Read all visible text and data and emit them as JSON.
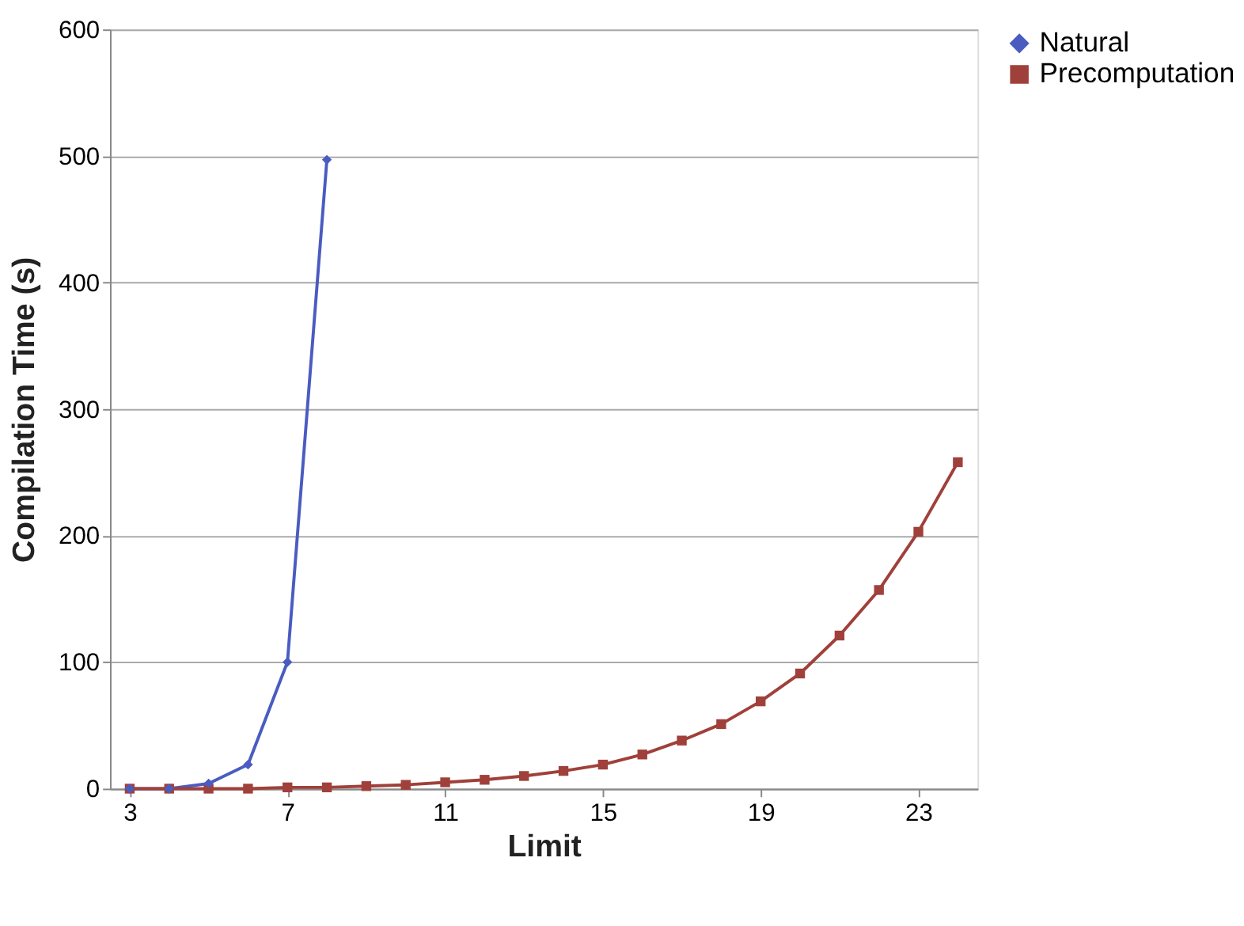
{
  "chart_data": {
    "type": "line",
    "xlabel": "Limit",
    "ylabel": "Compilation Time (s)",
    "xlim": [
      2.5,
      24.5
    ],
    "xticks": [
      3,
      7,
      11,
      15,
      19,
      23
    ],
    "ylim": [
      0,
      600
    ],
    "yticks": [
      0,
      100,
      200,
      300,
      400,
      500,
      600
    ],
    "grid": "y",
    "legend": "right",
    "line_style": "solid",
    "series": [
      {
        "name": "Natural",
        "color": "#4a5cc0",
        "marker": "diamond",
        "x": [
          3,
          4,
          5,
          6,
          7,
          8
        ],
        "values": [
          0,
          0,
          4,
          19,
          100,
          497
        ]
      },
      {
        "name": "Precomputation",
        "color": "#a0403a",
        "marker": "square",
        "x": [
          3,
          4,
          5,
          6,
          7,
          8,
          9,
          10,
          11,
          12,
          13,
          14,
          15,
          16,
          17,
          18,
          19,
          20,
          21,
          22,
          23,
          24
        ],
        "values": [
          0,
          0,
          0,
          0,
          1,
          1,
          2,
          3,
          5,
          7,
          10,
          14,
          19,
          27,
          38,
          51,
          69,
          91,
          121,
          157,
          203,
          258
        ]
      }
    ]
  }
}
